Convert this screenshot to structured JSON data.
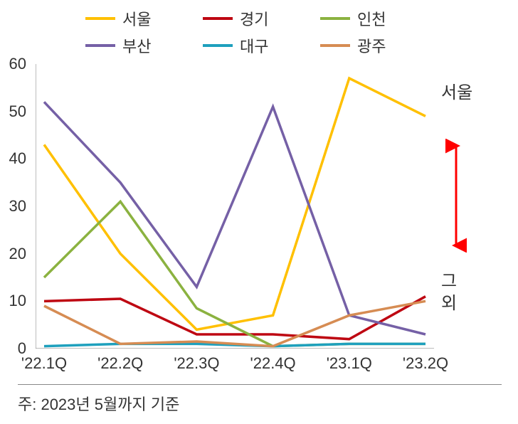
{
  "chart": {
    "type": "line",
    "background_color": "#ffffff",
    "axis_color": "#7a7a7a",
    "text_color": "#333333",
    "line_width": 3.5,
    "legend_fontsize": 22,
    "axis_fontsize": 22,
    "side_fontsize": 24,
    "footnote_fontsize": 22,
    "ylim": [
      0,
      60
    ],
    "ytick_step": 10,
    "yticks": [
      0,
      10,
      20,
      30,
      40,
      50,
      60
    ],
    "categories": [
      "'22.1Q",
      "'22.2Q",
      "'22.3Q",
      "'22.4Q",
      "'23.1Q",
      "'23.2Q"
    ],
    "series": [
      {
        "name": "서울",
        "color": "#ffc000",
        "values": [
          43,
          20,
          4,
          7,
          57,
          49
        ]
      },
      {
        "name": "경기",
        "color": "#be0712",
        "values": [
          10,
          10.5,
          3,
          3,
          2,
          11
        ]
      },
      {
        "name": "인천",
        "color": "#8bb240",
        "values": [
          15,
          31,
          8.5,
          0.5,
          1,
          1
        ]
      },
      {
        "name": "부산",
        "color": "#7560a6",
        "values": [
          52,
          35,
          13,
          51,
          7,
          3
        ]
      },
      {
        "name": "대구",
        "color": "#1ea0bd",
        "values": [
          0.5,
          1,
          1,
          0.5,
          1,
          1
        ]
      },
      {
        "name": "광주",
        "color": "#d68c53",
        "values": [
          9,
          1,
          1.5,
          0.5,
          7,
          10
        ]
      }
    ],
    "side_labels": {
      "top": "서울",
      "bottom": "그외",
      "arrow_color": "#ff0000"
    },
    "footnote": "주: 2023년 5월까지 기준"
  }
}
